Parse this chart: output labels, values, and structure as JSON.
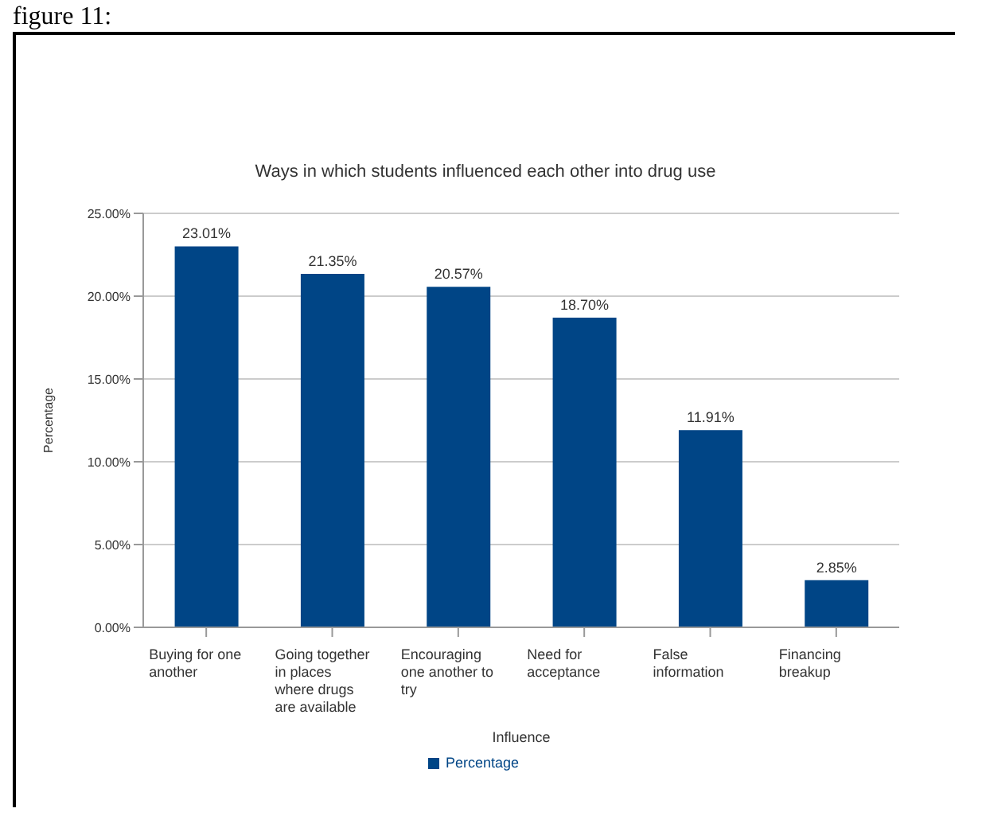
{
  "chart_data": {
    "type": "bar",
    "title": "Ways in which students influenced each other into drug use",
    "xlabel": "Influence",
    "ylabel": "Percentage",
    "annotations": [
      "figure 11:"
    ],
    "categories": [
      "Buying for one another",
      "Going together in places where drugs are available",
      "Encouraging one another to try",
      "Need for acceptance",
      "False information",
      "Financing breakup"
    ],
    "series": [
      {
        "name": "Percentage",
        "color": "#004586",
        "values": [
          23.01,
          21.35,
          20.57,
          18.7,
          11.91,
          2.85
        ]
      }
    ],
    "value_labels": [
      "23.01%",
      "21.35%",
      "20.57%",
      "18.70%",
      "11.91%",
      "2.85%"
    ],
    "ylim": [
      0,
      25
    ],
    "yticks": [
      {
        "value": 0,
        "label": "0.00%"
      },
      {
        "value": 5,
        "label": "5.00%"
      },
      {
        "value": 10,
        "label": "10.00%"
      },
      {
        "value": 15,
        "label": "15.00%"
      },
      {
        "value": 20,
        "label": "20.00%"
      },
      {
        "value": 25,
        "label": "25.00%"
      }
    ],
    "grid": "y",
    "legend": "bottom"
  }
}
